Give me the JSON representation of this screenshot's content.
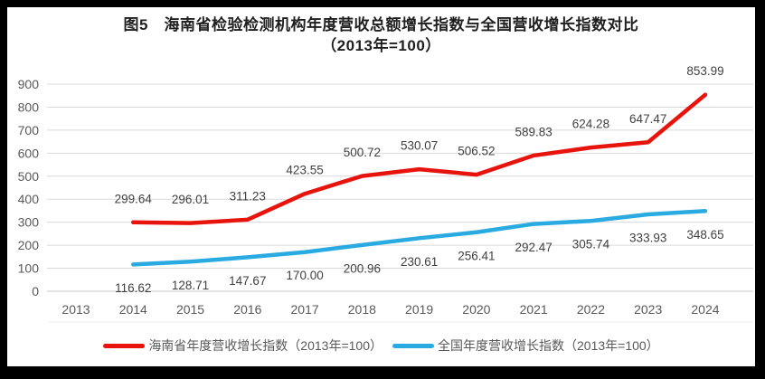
{
  "title": "图5　海南省检验检测机构年度营收总额增长指数与全国营收增长指数对比",
  "subtitle": "（2013年=100）",
  "chart_data": {
    "type": "line",
    "categories": [
      "2013",
      "2014",
      "2015",
      "2016",
      "2017",
      "2018",
      "2019",
      "2020",
      "2021",
      "2022",
      "2023",
      "2024"
    ],
    "series": [
      {
        "name": "海南省年度营收增长指数（2013年=100）",
        "color": "#e8130c",
        "label_position": "above",
        "values": [
          null,
          299.64,
          296.01,
          311.23,
          423.55,
          500.72,
          530.07,
          506.52,
          589.83,
          624.28,
          647.47,
          853.99
        ]
      },
      {
        "name": "全国年度营收增长指数（2013年=100）",
        "color": "#29abe2",
        "label_position": "below",
        "values": [
          null,
          116.62,
          128.71,
          147.67,
          170.0,
          200.96,
          230.61,
          256.41,
          292.47,
          305.74,
          333.93,
          348.65
        ]
      }
    ],
    "ylim": [
      0,
      900
    ],
    "ytick_step": 100,
    "grid": true,
    "legend_position": "bottom",
    "xlabel": "",
    "ylabel": ""
  },
  "styles": {
    "grid_color": "#d9d9d9",
    "zero_line_color": "#c9c9c9",
    "axis_text_color": "#595959",
    "data_label_color": "#404040",
    "baseline_color": "#ececec",
    "frame_color": "#000000"
  }
}
